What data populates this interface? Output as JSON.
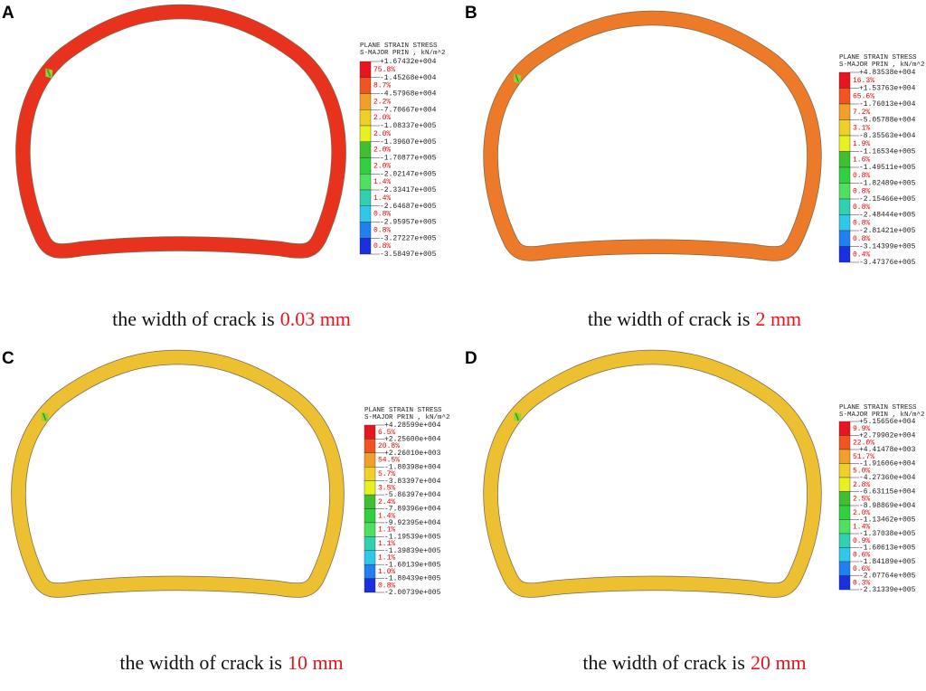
{
  "panels": [
    {
      "label": "A",
      "legend": {
        "title": [
          "PLANE STRAIN STRESS",
          "S-MAJOR PRIN , kN/m^2"
        ],
        "values": [
          "+1.67432e+004",
          "-1.45268e+004",
          "-4.57968e+004",
          "-7.70667e+004",
          "-1.08337e+005",
          "-1.39607e+005",
          "-1.70877e+005",
          "-2.02147e+005",
          "-2.33417e+005",
          "-2.64687e+005",
          "-2.95957e+005",
          "-3.27227e+005",
          "-3.58497e+005"
        ],
        "percents": [
          "75.8%",
          "8.7%",
          "2.2%",
          "2.0%",
          "2.0%",
          "2.0%",
          "2.0%",
          "1.4%",
          "1.4%",
          "0.8%",
          "0.8%",
          "0.8%"
        ]
      },
      "caption": {
        "text": "the width of crack is",
        "value": "0.03 mm"
      }
    },
    {
      "label": "B",
      "legend": {
        "title": [
          "PLANE STRAIN STRESS",
          "S-MAJOR PRIN , kN/m^2"
        ],
        "values": [
          "+4.83538e+004",
          "+1.53763e+004",
          "-1.76013e+004",
          "-5.05788e+004",
          "-8.35563e+004",
          "-1.16534e+005",
          "-1.49511e+005",
          "-1.82489e+005",
          "-2.15466e+005",
          "-2.48444e+005",
          "-2.81421e+005",
          "-3.14399e+005",
          "-3.47376e+005"
        ],
        "percents": [
          "16.3%",
          "65.6%",
          "7.2%",
          "3.1%",
          "1.9%",
          "1.6%",
          "0.8%",
          "0.8%",
          "0.8%",
          "0.8%",
          "0.8%",
          "0.4%"
        ]
      },
      "caption": {
        "text": "the width of crack is",
        "value": "2 mm"
      }
    },
    {
      "label": "C",
      "legend": {
        "title": [
          "PLANE STRAIN STRESS",
          "S-MAJOR PRIN , kN/m^2"
        ],
        "values": [
          "+4.28599e+004",
          "+2.25600e+004",
          "+2.26010e+003",
          "-1.80398e+004",
          "-3.83397e+004",
          "-5.86397e+004",
          "-7.89396e+004",
          "-9.92395e+004",
          "-1.19539e+005",
          "-1.39839e+005",
          "-1.60139e+005",
          "-1.80439e+005",
          "-2.00739e+005"
        ],
        "percents": [
          "6.5%",
          "20.8%",
          "54.5%",
          "5.7%",
          "3.5%",
          "2.4%",
          "1.4%",
          "1.1%",
          "1.1%",
          "1.1%",
          "1.0%",
          "0.8%"
        ]
      },
      "caption": {
        "text": "the width of crack is",
        "value": "10 mm"
      }
    },
    {
      "label": "D",
      "legend": {
        "title": [
          "PLANE STRAIN STRESS",
          "S-MAJOR PRIN , kN/m^2"
        ],
        "values": [
          "+5.15656e+004",
          "+2.79902e+004",
          "+4.41478e+003",
          "-1.91606e+004",
          "-4.27360e+004",
          "-6.63115e+004",
          "-8.98869e+004",
          "-1.13462e+005",
          "-1.37038e+005",
          "-1.60613e+005",
          "-1.84189e+005",
          "-2.07764e+005",
          "-2.31339e+005"
        ],
        "percents": [
          "9.9%",
          "22.0%",
          "51.7%",
          "5.0%",
          "2.8%",
          "2.5%",
          "2.0%",
          "1.4%",
          "0.9%",
          "0.6%",
          "0.6%",
          "0.3%"
        ]
      },
      "caption": {
        "text": "the width of crack is",
        "value": "20 mm"
      }
    }
  ]
}
